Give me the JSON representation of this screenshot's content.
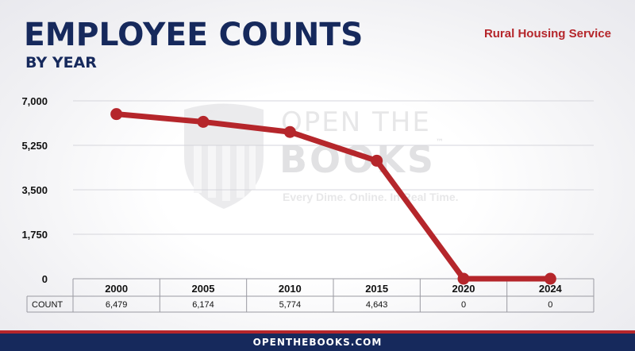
{
  "header": {
    "title": "EMPLOYEE COUNTS",
    "subtitle": "BY YEAR",
    "agency": "Rural Housing Service"
  },
  "watermark": {
    "line1": "OPEN THE",
    "line2": "BOOKS",
    "tm": "™",
    "tagline": "Every Dime. Online. In Real Time."
  },
  "footer": {
    "text": "OPENTHEBOOKS.COM"
  },
  "colors": {
    "navy": "#16295c",
    "red": "#b5262b"
  },
  "chart_data": {
    "type": "line",
    "categories": [
      "2000",
      "2005",
      "2010",
      "2015",
      "2020",
      "2024"
    ],
    "series": [
      {
        "values": [
          6479,
          6174,
          5774,
          4643,
          0,
          0
        ]
      }
    ],
    "table_row_label": "COUNT",
    "table_values": [
      "6,479",
      "6,174",
      "5,774",
      "4,643",
      "0",
      "0"
    ],
    "yticks": [
      0,
      1750,
      3500,
      5250,
      7000
    ],
    "ytick_labels": [
      "0",
      "1,750",
      "3,500",
      "5,250",
      "7,000"
    ],
    "ylim": [
      0,
      7000
    ],
    "grid": true,
    "legend": "none"
  }
}
